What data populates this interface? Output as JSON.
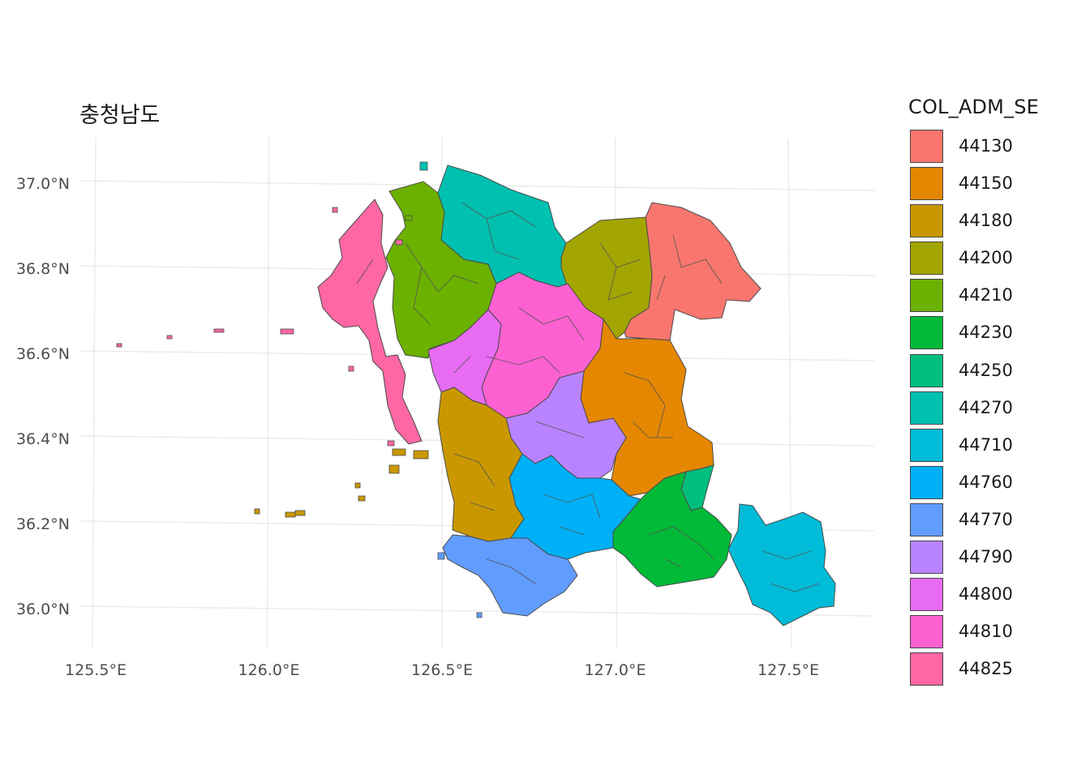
{
  "title": "충청남도",
  "axes": {
    "x_ticks": [
      "125.5°E",
      "126.0°E",
      "126.5°E",
      "127.0°E",
      "127.5°E"
    ],
    "y_ticks": [
      "37.0°N",
      "36.8°N",
      "36.6°N",
      "36.4°N",
      "36.2°N",
      "36.0°N"
    ],
    "x_values": [
      125.5,
      126.0,
      126.5,
      127.0,
      127.5
    ],
    "y_values": [
      37.0,
      36.8,
      36.6,
      36.4,
      36.2,
      36.0
    ]
  },
  "legend": {
    "title": "COL_ADM_SE",
    "items": [
      {
        "code": "44130",
        "color": "#F8766D"
      },
      {
        "code": "44150",
        "color": "#E58700"
      },
      {
        "code": "44180",
        "color": "#C99800"
      },
      {
        "code": "44200",
        "color": "#A3A500"
      },
      {
        "code": "44210",
        "color": "#6BB100"
      },
      {
        "code": "44230",
        "color": "#00BA38"
      },
      {
        "code": "44250",
        "color": "#00BF7D"
      },
      {
        "code": "44270",
        "color": "#00C0AF"
      },
      {
        "code": "44710",
        "color": "#00BCD8"
      },
      {
        "code": "44760",
        "color": "#00B0F6"
      },
      {
        "code": "44770",
        "color": "#619CFF"
      },
      {
        "code": "44790",
        "color": "#B983FF"
      },
      {
        "code": "44800",
        "color": "#E76BF3"
      },
      {
        "code": "44810",
        "color": "#FD61D1"
      },
      {
        "code": "44825",
        "color": "#FF67A4"
      }
    ]
  }
}
